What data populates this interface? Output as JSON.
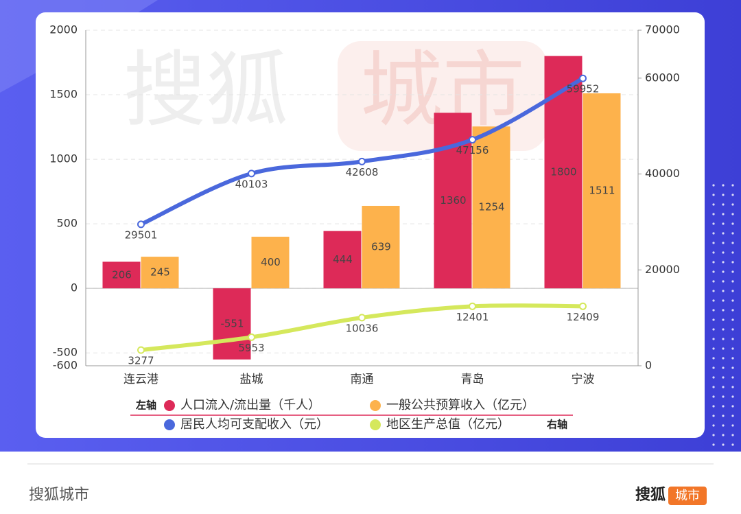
{
  "chart_data": {
    "type": "combo",
    "categories": [
      "连云港",
      "盐城",
      "南通",
      "青岛",
      "宁波"
    ],
    "series": [
      {
        "name": "人口流入/流出量（千人）",
        "color": "#dd2a58",
        "type": "bar",
        "axis": "y",
        "values": [
          206,
          -551,
          444,
          1360,
          1800
        ]
      },
      {
        "name": "一般公共预算收入（亿元）",
        "color": "#fdb24c",
        "type": "bar",
        "axis": "y",
        "values": [
          245,
          400,
          639,
          1254,
          1511
        ]
      },
      {
        "name": "居民人均可支配收入（元）",
        "color": "#4a68dc",
        "type": "line",
        "axis": "y2",
        "values": [
          29501,
          40103,
          42608,
          47156,
          59952
        ]
      },
      {
        "name": "地区生产总值（亿元）",
        "color": "#d5e85c",
        "type": "line",
        "axis": "y2",
        "values": [
          3277,
          5953,
          10036,
          12401,
          12409
        ]
      }
    ],
    "ylim": [
      -600,
      2000
    ],
    "yticks": [
      -600,
      -500,
      0,
      500,
      1000,
      1500,
      2000
    ],
    "y2lim": [
      0,
      70000
    ],
    "y2ticks": [
      0,
      20000,
      40000,
      60000,
      70000
    ],
    "grid": true,
    "legend_notes": {
      "left": "左轴",
      "right": "右轴"
    },
    "watermark": {
      "text": "搜狐",
      "badge": "城市"
    }
  },
  "footer": {
    "source": "搜狐城市",
    "logo": "搜狐",
    "logo_badge": "城市"
  }
}
